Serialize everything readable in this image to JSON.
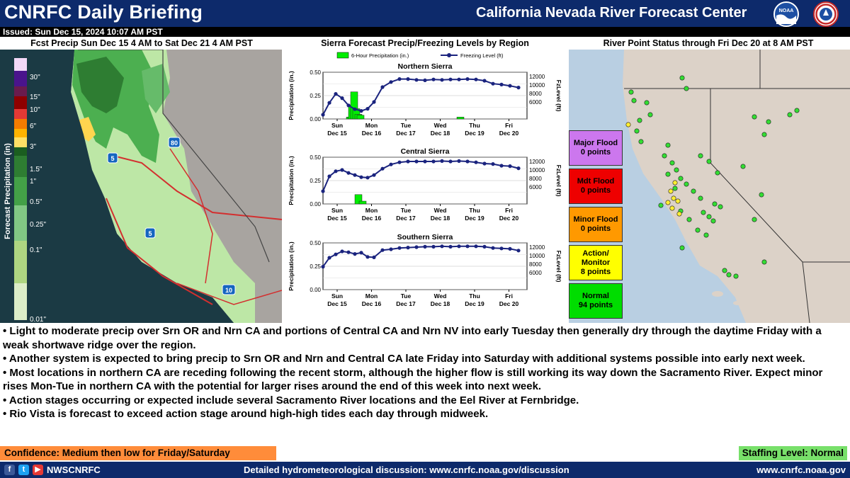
{
  "header": {
    "title": "CNRFC Daily Briefing",
    "center_name": "California Nevada River Forecast Center",
    "noaa_logo_text": "NOAA",
    "nws_logo_text": "NATIONAL WEATHER SERVICE",
    "issued": "Issued: Sun Dec 15, 2024 10:07 AM PST"
  },
  "left_panel": {
    "title": "Fcst Precip Sun Dec 15 4 AM to Sat Dec 21 4 AM PST",
    "scale_label": "Forecast Precipitation (in)",
    "scale_ticks": [
      "30\"",
      "15\"",
      "10\"",
      "6\"",
      "3\"",
      "1.5\"",
      "1\"",
      "0.5\"",
      "0.25\"",
      "0.1\"",
      "0.01\""
    ],
    "highway_labels": [
      "80",
      "5",
      "5",
      "10"
    ]
  },
  "middle_panel": {
    "title": "Sierra Forecast Precip/Freezing Levels by Region",
    "legend_precip": "6-Hour Precipitation (in.)",
    "legend_freezing": "Freezing Level (ft)"
  },
  "right_panel": {
    "title": "River Point Status through Fri Dec 20 at 8 AM PST",
    "statuses": [
      {
        "label": "Major Flood",
        "count": "0 points",
        "color": "#cc77ee"
      },
      {
        "label": "Mdt Flood",
        "count": "0 points",
        "color": "#ee0000"
      },
      {
        "label": "Minor Flood",
        "count": "0 points",
        "color": "#ff9900"
      },
      {
        "label": "Action/ Monitor",
        "count": "8 points",
        "color": "#ffff00"
      },
      {
        "label": "Normal",
        "count": "94 points",
        "color": "#00dd00"
      }
    ]
  },
  "chart_data": [
    {
      "type": "bar",
      "title": "Northern Sierra",
      "categories": [
        "Sun Dec 15",
        "Mon Dec 16",
        "Tue Dec 17",
        "Wed Dec 18",
        "Thu Dec 19",
        "Fri Dec 20"
      ],
      "ylabel": "Precipitation (in.)",
      "y2label": "FzLevel (ft)",
      "ylim": [
        0,
        0.5
      ],
      "y2lim": [
        2000,
        13000
      ],
      "yticks": [
        "0.50",
        "0.25",
        "0.00"
      ],
      "y2ticks": [
        "12000",
        "10000",
        "8000",
        "6000"
      ],
      "series": [
        {
          "name": "6-Hour Precipitation (in.)",
          "kind": "bar",
          "color": "#00ee00",
          "x": [
            2.75,
            3,
            3.25,
            3.5,
            3.75,
            4,
            15.75
          ],
          "values": [
            0.02,
            0.15,
            0.29,
            0.11,
            0.05,
            0.04,
            0.02
          ]
        },
        {
          "name": "Freezing Level (ft)",
          "kind": "line",
          "color": "#1a237e",
          "x": [
            0,
            0.75,
            1.5,
            2.25,
            3,
            3.75,
            4.5,
            5.25,
            6,
            7,
            8,
            9,
            10,
            11,
            12,
            13,
            14,
            15,
            16,
            17,
            18,
            19,
            20,
            21,
            22,
            23
          ],
          "values": [
            3000,
            5800,
            7900,
            6900,
            5200,
            4300,
            3900,
            4400,
            6000,
            9500,
            10700,
            11400,
            11400,
            11200,
            11100,
            11300,
            11200,
            11300,
            11300,
            11400,
            11300,
            11000,
            10300,
            10100,
            9800,
            9400
          ]
        }
      ]
    },
    {
      "type": "bar",
      "title": "Central Sierra",
      "categories": [
        "Sun Dec 15",
        "Mon Dec 16",
        "Tue Dec 17",
        "Wed Dec 18",
        "Thu Dec 19",
        "Fri Dec 20"
      ],
      "ylabel": "Precipitation (in.)",
      "y2label": "FzLevel (ft)",
      "ylim": [
        0,
        0.5
      ],
      "y2lim": [
        2000,
        13000
      ],
      "yticks": [
        "0.50",
        "0.25",
        "0.00"
      ],
      "y2ticks": [
        "12000",
        "10000",
        "8000",
        "6000"
      ],
      "series": [
        {
          "name": "6-Hour Precipitation (in.)",
          "kind": "bar",
          "color": "#00ee00",
          "x": [
            3.75,
            4.25
          ],
          "values": [
            0.1,
            0.03
          ]
        },
        {
          "name": "Freezing Level (ft)",
          "kind": "line",
          "color": "#1a237e",
          "x": [
            0,
            0.75,
            1.5,
            2.25,
            3,
            3.75,
            4.5,
            5.25,
            6,
            7,
            8,
            9,
            10,
            11,
            12,
            13,
            14,
            15,
            16,
            17,
            18,
            19,
            20,
            21,
            22,
            23
          ],
          "values": [
            5000,
            8500,
            9700,
            10000,
            9300,
            8800,
            8300,
            8200,
            8800,
            10300,
            11300,
            11800,
            12000,
            12000,
            12000,
            12000,
            12100,
            12000,
            12100,
            12000,
            11800,
            11500,
            11400,
            11000,
            10900,
            10400
          ]
        }
      ]
    },
    {
      "type": "bar",
      "title": "Southern Sierra",
      "categories": [
        "Sun Dec 15",
        "Mon Dec 16",
        "Tue Dec 17",
        "Wed Dec 18",
        "Thu Dec 19",
        "Fri Dec 20"
      ],
      "ylabel": "Precipitation (in.)",
      "y2label": "FzLevel (ft)",
      "ylim": [
        0,
        0.5
      ],
      "y2lim": [
        2000,
        13000
      ],
      "yticks": [
        "0.50",
        "0.25",
        "0.00"
      ],
      "y2ticks": [
        "12000",
        "10000",
        "8000",
        "6000"
      ],
      "series": [
        {
          "name": "6-Hour Precipitation (in.)",
          "kind": "bar",
          "color": "#00ee00",
          "x": [],
          "values": []
        },
        {
          "name": "Freezing Level (ft)",
          "kind": "line",
          "color": "#1a237e",
          "x": [
            0,
            0.75,
            1.5,
            2.25,
            3,
            3.75,
            4.5,
            5.25,
            6,
            7,
            8,
            9,
            10,
            11,
            12,
            13,
            14,
            15,
            16,
            17,
            18,
            19,
            20,
            21,
            22,
            23
          ],
          "values": [
            7400,
            9500,
            10300,
            11000,
            10800,
            10400,
            10700,
            9700,
            9600,
            11300,
            11500,
            11800,
            11900,
            12000,
            12100,
            12100,
            12200,
            12100,
            12200,
            12200,
            12200,
            12100,
            11800,
            11700,
            11600,
            11200
          ]
        }
      ]
    }
  ],
  "bullets": [
    "• Light to moderate precip over Srn OR and Nrn CA and portions of Central CA and Nrn NV into early Tuesday then generally dry through the daytime Friday with a weak shortwave ridge over the region.",
    "• Another system is expected to bring precip to Srn OR and Nrn and Central CA late Friday into Saturday with additional systems possible into early next week.",
    "• Most locations in northern CA are receding following the recent storm, although the higher flow is still working its way down the Sacramento River.  Expect minor rises Mon-Tue in northern CA with the potential for larger rises around the end of this week into next week.",
    "• Action stages occurring or expected include several Sacramento River locations and the Eel River at Fernbridge.",
    "• Rio Vista is forecast to exceed action stage around high-high tides each day through midweek."
  ],
  "footer": {
    "confidence": "Confidence: Medium then low for Friday/Saturday",
    "staffing": "Staffing Level: Normal",
    "social_handle": "NWSCNRFC",
    "discussion": "Detailed hydrometeorological discussion: www.cnrfc.noaa.gov/discussion",
    "website": "www.cnrfc.noaa.gov"
  }
}
